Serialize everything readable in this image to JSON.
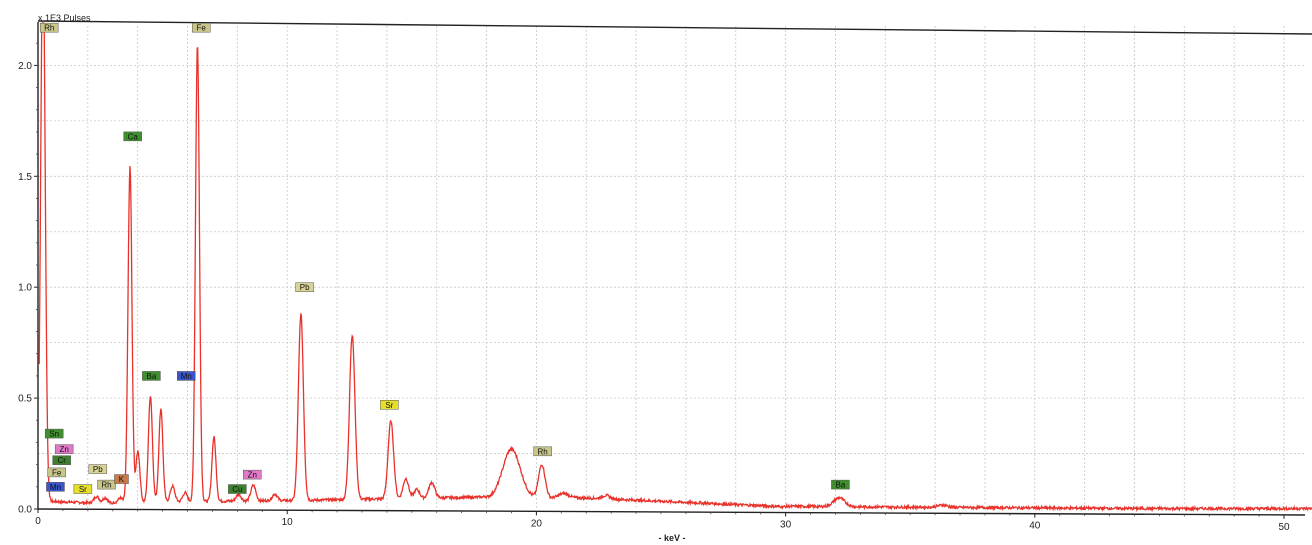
{
  "chart_data": {
    "type": "line",
    "title": "",
    "ylabel": "x 1E3 Pulses",
    "xlabel": "- keV -",
    "xlim": [
      0,
      51
    ],
    "ylim": [
      0,
      2.2
    ],
    "grid": true,
    "x_ticks": [
      {
        "value": 0,
        "label": "0"
      },
      {
        "value": 10,
        "label": "10"
      },
      {
        "value": 20,
        "label": "20"
      },
      {
        "value": 30,
        "label": "30"
      },
      {
        "value": 40,
        "label": "40"
      },
      {
        "value": 50,
        "label": "50"
      }
    ],
    "y_ticks": [
      {
        "value": 0,
        "label": "0.0"
      },
      {
        "value": 0.5,
        "label": "0.5"
      },
      {
        "value": 1.0,
        "label": "1.0"
      },
      {
        "value": 1.5,
        "label": "1.5"
      },
      {
        "value": 2.0,
        "label": "2.0"
      }
    ],
    "series": [
      {
        "color": "#e8322b",
        "peaks": [
          {
            "x": 0.2,
            "height": 2.5,
            "width": 0.09
          },
          {
            "x": 2.35,
            "height": 0.03,
            "width": 0.1
          },
          {
            "x": 2.7,
            "height": 0.025,
            "width": 0.1
          },
          {
            "x": 3.3,
            "height": 0.02,
            "width": 0.08
          },
          {
            "x": 3.69,
            "height": 1.51,
            "width": 0.08
          },
          {
            "x": 4.01,
            "height": 0.23,
            "width": 0.08
          },
          {
            "x": 4.51,
            "height": 0.48,
            "width": 0.08
          },
          {
            "x": 4.93,
            "height": 0.42,
            "width": 0.08
          },
          {
            "x": 5.4,
            "height": 0.07,
            "width": 0.09
          },
          {
            "x": 5.9,
            "height": 0.04,
            "width": 0.09
          },
          {
            "x": 6.4,
            "height": 2.06,
            "width": 0.08
          },
          {
            "x": 7.06,
            "height": 0.29,
            "width": 0.08
          },
          {
            "x": 8.05,
            "height": 0.03,
            "width": 0.1
          },
          {
            "x": 8.64,
            "height": 0.07,
            "width": 0.1
          },
          {
            "x": 9.5,
            "height": 0.03,
            "width": 0.1
          },
          {
            "x": 10.55,
            "height": 0.84,
            "width": 0.1
          },
          {
            "x": 12.61,
            "height": 0.74,
            "width": 0.11
          },
          {
            "x": 14.16,
            "height": 0.35,
            "width": 0.11
          },
          {
            "x": 14.76,
            "height": 0.09,
            "width": 0.11
          },
          {
            "x": 15.2,
            "height": 0.04,
            "width": 0.11
          },
          {
            "x": 15.8,
            "height": 0.07,
            "width": 0.12
          },
          {
            "x": 19.0,
            "height": 0.22,
            "width": 0.35
          },
          {
            "x": 20.22,
            "height": 0.15,
            "width": 0.13
          },
          {
            "x": 21.1,
            "height": 0.02,
            "width": 0.2
          },
          {
            "x": 22.8,
            "height": 0.015,
            "width": 0.15
          },
          {
            "x": 32.15,
            "height": 0.04,
            "width": 0.22
          },
          {
            "x": 36.3,
            "height": 0.01,
            "width": 0.2
          }
        ]
      }
    ],
    "peak_labels": [
      {
        "text": "Rh",
        "x": 0.45,
        "y": 2.17,
        "color": "#c9c68a"
      },
      {
        "text": "Fe",
        "x": 6.55,
        "y": 2.17,
        "color": "#c9c68a"
      },
      {
        "text": "Ca",
        "x": 3.8,
        "y": 1.68,
        "color": "#3f8f2f"
      },
      {
        "text": "Pb",
        "x": 10.7,
        "y": 1.0,
        "color": "#d8d496"
      },
      {
        "text": "Ba",
        "x": 4.55,
        "y": 0.6,
        "color": "#3f8f2f"
      },
      {
        "text": "Mn",
        "x": 5.95,
        "y": 0.6,
        "color": "#3a56c9"
      },
      {
        "text": "Sr",
        "x": 14.1,
        "y": 0.47,
        "color": "#e6e02a"
      },
      {
        "text": "Rh",
        "x": 20.25,
        "y": 0.26,
        "color": "#c9c68a"
      },
      {
        "text": "Ba",
        "x": 32.2,
        "y": 0.11,
        "color": "#3f8f2f"
      },
      {
        "text": "Sn",
        "x": 0.65,
        "y": 0.34,
        "color": "#3f8f2f"
      },
      {
        "text": "Zn",
        "x": 1.05,
        "y": 0.27,
        "color": "#e07ac8"
      },
      {
        "text": "Cr",
        "x": 0.95,
        "y": 0.22,
        "color": "#3f7f30"
      },
      {
        "text": "Fe",
        "x": 0.75,
        "y": 0.165,
        "color": "#c9c68a"
      },
      {
        "text": "Mn",
        "x": 0.7,
        "y": 0.1,
        "color": "#3a56c9"
      },
      {
        "text": "Sr",
        "x": 1.8,
        "y": 0.09,
        "color": "#e6e02a"
      },
      {
        "text": "Pb",
        "x": 2.4,
        "y": 0.18,
        "color": "#d8d496"
      },
      {
        "text": "Rh",
        "x": 2.75,
        "y": 0.11,
        "color": "#c9c68a"
      },
      {
        "text": "K",
        "x": 3.35,
        "y": 0.135,
        "color": "#c87a4a"
      },
      {
        "text": "Zn",
        "x": 8.6,
        "y": 0.155,
        "color": "#e07ac8"
      },
      {
        "text": "Cu",
        "x": 8.0,
        "y": 0.09,
        "color": "#3f7f30"
      }
    ]
  }
}
